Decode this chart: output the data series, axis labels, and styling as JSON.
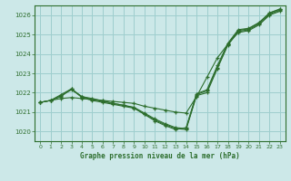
{
  "title": "Graphe pression niveau de la mer (hPa)",
  "bg_color": "#cce8e8",
  "grid_color": "#9ecece",
  "line_color": "#2d6e2d",
  "xlim": [
    -0.5,
    23.5
  ],
  "ylim": [
    1019.5,
    1026.5
  ],
  "xticks": [
    0,
    1,
    2,
    3,
    4,
    5,
    6,
    7,
    8,
    9,
    10,
    11,
    12,
    13,
    14,
    15,
    16,
    17,
    18,
    19,
    20,
    21,
    22,
    23
  ],
  "yticks": [
    1020,
    1021,
    1022,
    1023,
    1024,
    1025,
    1026
  ],
  "series": [
    [
      1021.5,
      1021.6,
      1021.7,
      1021.75,
      1021.7,
      1021.65,
      1021.6,
      1021.55,
      1021.5,
      1021.45,
      1021.3,
      1021.2,
      1021.1,
      1021.0,
      1020.95,
      1021.8,
      1022.8,
      1023.8,
      1024.5,
      1025.1,
      1025.2,
      1025.5,
      1026.0,
      1026.2
    ],
    [
      1021.5,
      1021.6,
      1021.8,
      1022.2,
      1021.75,
      1021.6,
      1021.5,
      1021.4,
      1021.3,
      1021.2,
      1020.9,
      1020.6,
      1020.35,
      1020.15,
      1020.1,
      1021.85,
      1022.0,
      1023.25,
      1024.45,
      1025.15,
      1025.25,
      1025.55,
      1026.05,
      1026.25
    ],
    [
      1021.5,
      1021.6,
      1021.85,
      1022.15,
      1021.8,
      1021.65,
      1021.55,
      1021.45,
      1021.35,
      1021.25,
      1020.95,
      1020.65,
      1020.4,
      1020.2,
      1020.15,
      1021.9,
      1022.1,
      1023.3,
      1024.5,
      1025.2,
      1025.3,
      1025.6,
      1026.1,
      1026.3
    ],
    [
      1021.5,
      1021.6,
      1021.9,
      1022.2,
      1021.8,
      1021.7,
      1021.58,
      1021.45,
      1021.35,
      1021.22,
      1020.88,
      1020.55,
      1020.3,
      1020.1,
      1020.2,
      1021.95,
      1022.15,
      1023.4,
      1024.55,
      1025.25,
      1025.32,
      1025.62,
      1026.12,
      1026.32
    ]
  ]
}
